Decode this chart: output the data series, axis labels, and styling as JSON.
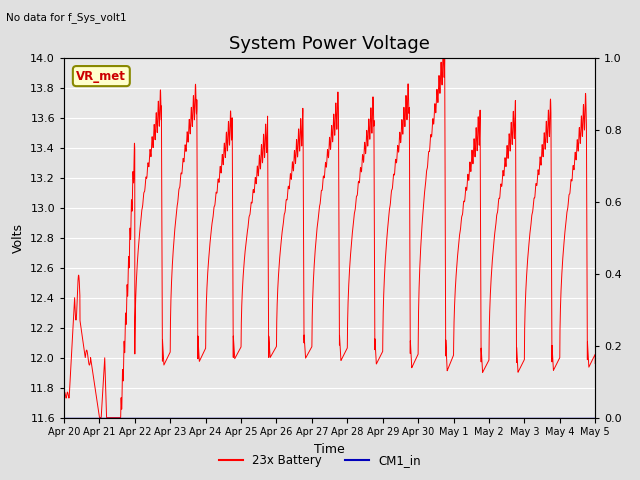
{
  "title": "System Power Voltage",
  "top_left_text": "No data for f_Sys_volt1",
  "ylabel": "Volts",
  "xlabel": "Time",
  "ylim": [
    11.6,
    14.0
  ],
  "right_ylim": [
    0.0,
    1.0
  ],
  "xtick_labels": [
    "Apr 20",
    "Apr 21",
    "Apr 22",
    "Apr 23",
    "Apr 24",
    "Apr 25",
    "Apr 26",
    "Apr 27",
    "Apr 28",
    "Apr 29",
    "Apr 30",
    "May 1",
    "May 2",
    "May 3",
    "May 4",
    "May 5"
  ],
  "ytick_left": [
    11.6,
    11.8,
    12.0,
    12.2,
    12.4,
    12.6,
    12.8,
    13.0,
    13.2,
    13.4,
    13.6,
    13.8,
    14.0
  ],
  "ytick_right": [
    0.0,
    0.2,
    0.4,
    0.6,
    0.8,
    1.0
  ],
  "annotation_text": "VR_met",
  "bg_color": "#e0e0e0",
  "plot_bg_color": "#e8e8e8",
  "grid_color": "#ffffff",
  "line_color_red": "#ff0000",
  "line_color_blue": "#0000bb",
  "legend_labels": [
    "23x Battery",
    "CM1_in"
  ],
  "title_fontsize": 13,
  "label_fontsize": 9,
  "tick_fontsize": 8,
  "days": 15
}
